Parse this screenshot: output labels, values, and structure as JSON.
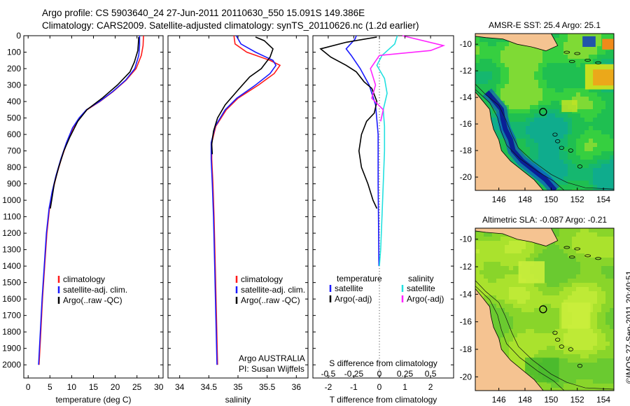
{
  "header": {
    "line1": "Argo profile: CS 5903640_24 27-Jun-2011 20110630_550 15.091S 149.386E",
    "line2": "Climatology: CARS2009. Satellite-adjusted climatology: synTS_20110626.nc (1.2d earlier)"
  },
  "colors": {
    "climatology": "#ff1a1a",
    "satellite": "#1a1aff",
    "argo": "#000000",
    "sal_satellite": "#22e0e0",
    "sal_argo": "#ff22ff",
    "land": "#f5c391"
  },
  "depth_axis": {
    "ticks": [
      "0",
      "100",
      "200",
      "300",
      "400",
      "500",
      "600",
      "700",
      "800",
      "900",
      "1000",
      "1100",
      "1200",
      "1300",
      "1400",
      "1500",
      "1600",
      "1700",
      "1800",
      "1900",
      "2000"
    ],
    "ylim": [
      0,
      2080
    ]
  },
  "chart_data": [
    {
      "type": "line",
      "name": "temperature-panel",
      "xlabel": "temperature (deg C)",
      "xlim": [
        -1,
        31
      ],
      "xticks": [
        "0",
        "5",
        "10",
        "15",
        "20",
        "25",
        "30"
      ],
      "ylim": [
        0,
        2080
      ],
      "legend": [
        "climatology",
        "satellite-adj. clim.",
        "Argo(..raw -QC)"
      ],
      "series": [
        {
          "name": "climatology",
          "color_key": "climatology",
          "points": [
            [
              26.5,
              0
            ],
            [
              26.4,
              60
            ],
            [
              26.0,
              120
            ],
            [
              24.8,
              200
            ],
            [
              22.5,
              270
            ],
            [
              19.5,
              340
            ],
            [
              16.5,
              400
            ],
            [
              13.5,
              450
            ],
            [
              11.8,
              500
            ],
            [
              10.3,
              560
            ],
            [
              8.9,
              650
            ],
            [
              7.6,
              750
            ],
            [
              6.5,
              850
            ],
            [
              5.6,
              950
            ],
            [
              4.9,
              1050
            ],
            [
              4.3,
              1200
            ],
            [
              3.8,
              1400
            ],
            [
              3.3,
              1600
            ],
            [
              2.9,
              1800
            ],
            [
              2.5,
              2000
            ]
          ]
        },
        {
          "name": "satellite-adj. clim.",
          "color_key": "satellite",
          "points": [
            [
              25.6,
              0
            ],
            [
              25.6,
              60
            ],
            [
              25.4,
              120
            ],
            [
              24.5,
              200
            ],
            [
              22.4,
              270
            ],
            [
              19.4,
              340
            ],
            [
              16.4,
              400
            ],
            [
              13.4,
              450
            ],
            [
              11.7,
              500
            ],
            [
              10.2,
              560
            ],
            [
              8.8,
              650
            ],
            [
              7.5,
              750
            ],
            [
              6.4,
              850
            ],
            [
              5.5,
              950
            ],
            [
              4.8,
              1050
            ],
            [
              4.2,
              1200
            ],
            [
              3.7,
              1400
            ],
            [
              3.2,
              1600
            ],
            [
              2.8,
              1800
            ],
            [
              2.4,
              2000
            ]
          ]
        },
        {
          "name": "Argo(..raw -QC)",
          "color_key": "argo",
          "points": [
            [
              25.4,
              8
            ],
            [
              25.3,
              50
            ],
            [
              25.2,
              90
            ],
            [
              24.4,
              160
            ],
            [
              23.4,
              220
            ],
            [
              20.5,
              300
            ],
            [
              17.0,
              380
            ],
            [
              13.5,
              450
            ],
            [
              11.4,
              520
            ],
            [
              9.5,
              620
            ],
            [
              8.2,
              700
            ],
            [
              7.0,
              800
            ],
            [
              6.0,
              900
            ],
            [
              5.4,
              1000
            ],
            [
              5.1,
              1050
            ]
          ]
        }
      ]
    },
    {
      "type": "line",
      "name": "salinity-panel",
      "xlabel": "salinity",
      "xlim": [
        33.8,
        36.2
      ],
      "xticks": [
        "34",
        "34.5",
        "35",
        "35.5",
        "36"
      ],
      "ylim": [
        0,
        2080
      ],
      "legend": [
        "climatology",
        "satellite-adj. clim.",
        "Argo(..raw -QC)"
      ],
      "note": [
        "Argo AUSTRALIA",
        "PI: Susan Wijffels"
      ],
      "series": [
        {
          "name": "climatology",
          "color_key": "climatology",
          "points": [
            [
              34.93,
              0
            ],
            [
              34.95,
              50
            ],
            [
              35.15,
              100
            ],
            [
              35.55,
              150
            ],
            [
              35.72,
              180
            ],
            [
              35.62,
              230
            ],
            [
              35.35,
              300
            ],
            [
              35.0,
              380
            ],
            [
              34.8,
              450
            ],
            [
              34.62,
              550
            ],
            [
              34.55,
              650
            ],
            [
              34.55,
              750
            ],
            [
              34.57,
              900
            ],
            [
              34.59,
              1100
            ],
            [
              34.61,
              1400
            ],
            [
              34.63,
              1700
            ],
            [
              34.65,
              2000
            ]
          ]
        },
        {
          "name": "satellite-adj. clim.",
          "color_key": "satellite",
          "points": [
            [
              34.97,
              0
            ],
            [
              35.05,
              50
            ],
            [
              35.3,
              100
            ],
            [
              35.6,
              150
            ],
            [
              35.65,
              180
            ],
            [
              35.55,
              230
            ],
            [
              35.3,
              300
            ],
            [
              34.98,
              380
            ],
            [
              34.78,
              450
            ],
            [
              34.61,
              550
            ],
            [
              34.54,
              650
            ],
            [
              34.54,
              750
            ],
            [
              34.56,
              900
            ],
            [
              34.58,
              1100
            ],
            [
              34.6,
              1400
            ],
            [
              34.62,
              1700
            ],
            [
              34.64,
              2000
            ]
          ]
        },
        {
          "name": "Argo(..raw -QC)",
          "color_key": "argo",
          "points": [
            [
              35.3,
              8
            ],
            [
              35.45,
              30
            ],
            [
              35.6,
              80
            ],
            [
              35.55,
              130
            ],
            [
              35.4,
              200
            ],
            [
              35.2,
              250
            ],
            [
              35.0,
              330
            ],
            [
              34.78,
              420
            ],
            [
              34.65,
              500
            ],
            [
              34.58,
              580
            ],
            [
              34.55,
              660
            ],
            [
              34.56,
              720
            ]
          ]
        }
      ]
    },
    {
      "type": "line",
      "name": "difference-panel",
      "xlabel": "T difference from climatology",
      "top_xlabel": "S difference from climatology",
      "xlim": [
        -2.6,
        2.9
      ],
      "xticks": [
        "-2",
        "-1",
        "0",
        "1",
        "2"
      ],
      "top_xticks": [
        "-0.5",
        "-0.25",
        "0",
        "0.25",
        "0.5"
      ],
      "ylim": [
        0,
        2080
      ],
      "legend_titles": [
        "temperature",
        "salinity"
      ],
      "legend": [
        "satellite",
        "Argo(-adj)",
        "satellite",
        "Argo(-adj)"
      ],
      "series": [
        {
          "name": "T satellite",
          "color_key": "satellite",
          "points": [
            [
              -0.9,
              0
            ],
            [
              -0.95,
              20
            ],
            [
              -1.3,
              80
            ],
            [
              -1.1,
              120
            ],
            [
              -0.75,
              200
            ],
            [
              -0.4,
              300
            ],
            [
              -0.15,
              420
            ],
            [
              -0.05,
              600
            ],
            [
              -0.05,
              900
            ],
            [
              -0.03,
              1200
            ],
            [
              -0.02,
              1400
            ]
          ]
        },
        {
          "name": "T Argo(-adj)",
          "color_key": "argo",
          "points": [
            [
              -0.1,
              8
            ],
            [
              -1.3,
              40
            ],
            [
              -2.3,
              80
            ],
            [
              -1.9,
              130
            ],
            [
              -1.3,
              180
            ],
            [
              -0.9,
              220
            ],
            [
              -0.6,
              280
            ],
            [
              -0.3,
              320
            ],
            [
              -0.1,
              400
            ],
            [
              -0.2,
              470
            ],
            [
              -0.5,
              520
            ],
            [
              -0.7,
              600
            ],
            [
              -0.8,
              700
            ],
            [
              -0.7,
              800
            ],
            [
              -0.45,
              900
            ],
            [
              -0.25,
              1000
            ],
            [
              -0.1,
              1050
            ]
          ]
        },
        {
          "name": "S satellite",
          "color_key": "sal_satellite",
          "points": [
            [
              0.7,
              0
            ],
            [
              0.6,
              50
            ],
            [
              0.1,
              120
            ],
            [
              -0.1,
              180
            ],
            [
              0.2,
              260
            ],
            [
              0.3,
              350
            ],
            [
              0.15,
              450
            ],
            [
              0.2,
              550
            ],
            [
              0.2,
              700
            ],
            [
              0.15,
              900
            ],
            [
              0.1,
              1100
            ],
            [
              0.05,
              1300
            ],
            [
              0.0,
              1400
            ]
          ]
        },
        {
          "name": "S Argo(-adj)",
          "color_key": "sal_argo",
          "points": [
            [
              0.9,
              0
            ],
            [
              2.5,
              60
            ],
            [
              2.0,
              90
            ],
            [
              0.0,
              120
            ],
            [
              -0.35,
              200
            ],
            [
              -0.15,
              300
            ],
            [
              -0.3,
              380
            ],
            [
              0.15,
              450
            ],
            [
              0.05,
              520
            ]
          ]
        }
      ]
    },
    {
      "type": "heatmap",
      "name": "sst-map",
      "title": "AMSR-E SST: 25.4 Argo: 25.1",
      "xticks": [
        "146",
        "148",
        "150",
        "152",
        "154"
      ],
      "yticks": [
        "-10",
        "-12",
        "-14",
        "-16",
        "-18",
        "-20"
      ],
      "xlim": [
        144.2,
        154.8
      ],
      "ylim": [
        -21.0,
        -9.2
      ],
      "marker": [
        149.386,
        -15.091
      ]
    },
    {
      "type": "heatmap",
      "name": "sla-map",
      "title": "Altimetric SLA: -0.087 Argo: -0.21",
      "xticks": [
        "146",
        "148",
        "150",
        "152",
        "154"
      ],
      "yticks": [
        "-10",
        "-12",
        "-14",
        "-16",
        "-18",
        "-20"
      ],
      "xlim": [
        144.2,
        154.8
      ],
      "ylim": [
        -21.0,
        -9.2
      ],
      "marker": [
        149.386,
        -15.091
      ]
    }
  ],
  "footer": {
    "stamp": "©IMOS 27-Sep-2011 20:40:51"
  }
}
